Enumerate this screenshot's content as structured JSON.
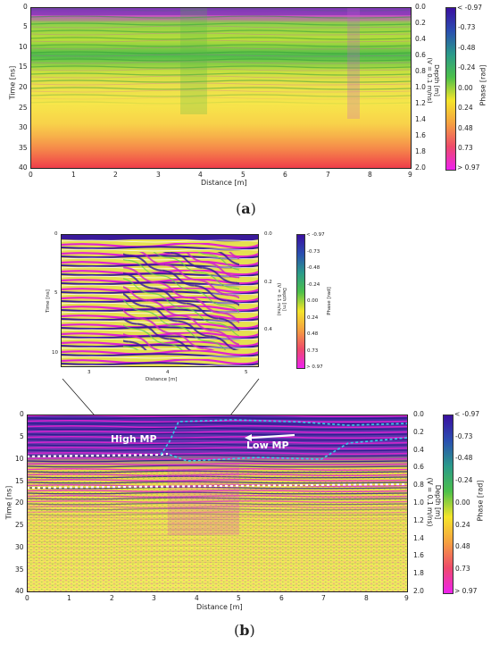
{
  "panel_a": {
    "caption_letter": "a",
    "x_label": "Distance [m]",
    "y_left_label": "Time [ns]",
    "y_right_label_line1": "Depth [m]",
    "y_right_label_line2": "(V = 0.1 m/ns)",
    "colorbar_label": "Phase [rad]",
    "x_ticks": [
      "0",
      "1",
      "2",
      "3",
      "4",
      "5",
      "6",
      "7",
      "8",
      "9"
    ],
    "y_left_ticks": [
      "0",
      "5",
      "10",
      "15",
      "20",
      "25",
      "30",
      "35",
      "40"
    ],
    "y_right_ticks": [
      "0.0",
      "0.2",
      "0.4",
      "0.6",
      "0.8",
      "1.0",
      "1.2",
      "1.4",
      "1.6",
      "1.8",
      "2.0"
    ],
    "colorbar_ticks": [
      "< -0.97",
      "-0.73",
      "-0.48",
      "-0.24",
      "0.00",
      "0.24",
      "0.48",
      "0.73",
      "> 0.97"
    ]
  },
  "inset": {
    "x_label": "Distance [m]",
    "y_left_label": "Time [ns]",
    "y_right_label_line1": "Depth [m]",
    "y_right_label_line2": "(V = 0.1 m/ns)",
    "colorbar_label": "Phase [rad]",
    "x_ticks": [
      "3",
      "4",
      "5"
    ],
    "y_left_ticks": [
      "0",
      "5",
      "10"
    ],
    "y_right_ticks": [
      "0.0",
      "0.2",
      "0.4"
    ],
    "colorbar_ticks": [
      "< -0.97",
      "-0.73",
      "-0.48",
      "-0.24",
      "0.00",
      "0.24",
      "0.48",
      "0.73",
      "> 0.97"
    ]
  },
  "panel_b": {
    "caption_letter": "b",
    "x_label": "Distance [m]",
    "y_left_label": "Time [ns]",
    "y_right_label_line1": "Depth [m]",
    "y_right_label_line2": "(V = 0.1 m/ns)",
    "colorbar_label": "Phase [rad]",
    "annotation_high": "High MP",
    "annotation_low": "Low MP",
    "x_ticks": [
      "0",
      "1",
      "2",
      "3",
      "4",
      "5",
      "6",
      "7",
      "8",
      "9"
    ],
    "y_left_ticks": [
      "0",
      "5",
      "10",
      "15",
      "20",
      "25",
      "30",
      "35",
      "40"
    ],
    "y_right_ticks": [
      "0.0",
      "0.2",
      "0.4",
      "0.6",
      "0.8",
      "1.0",
      "1.2",
      "1.4",
      "1.6",
      "1.8",
      "2.0"
    ],
    "colorbar_ticks": [
      "< -0.97",
      "-0.73",
      "-0.48",
      "-0.24",
      "0.00",
      "0.24",
      "0.48",
      "0.73",
      "> 0.97"
    ]
  },
  "colors": {
    "phase_low": "#3a0fa0",
    "phase_mid": "#f5e52a",
    "phase_high": "#ee22ee",
    "annotation_white": "#ffffff",
    "annotation_cyan": "#35d0e8"
  }
}
